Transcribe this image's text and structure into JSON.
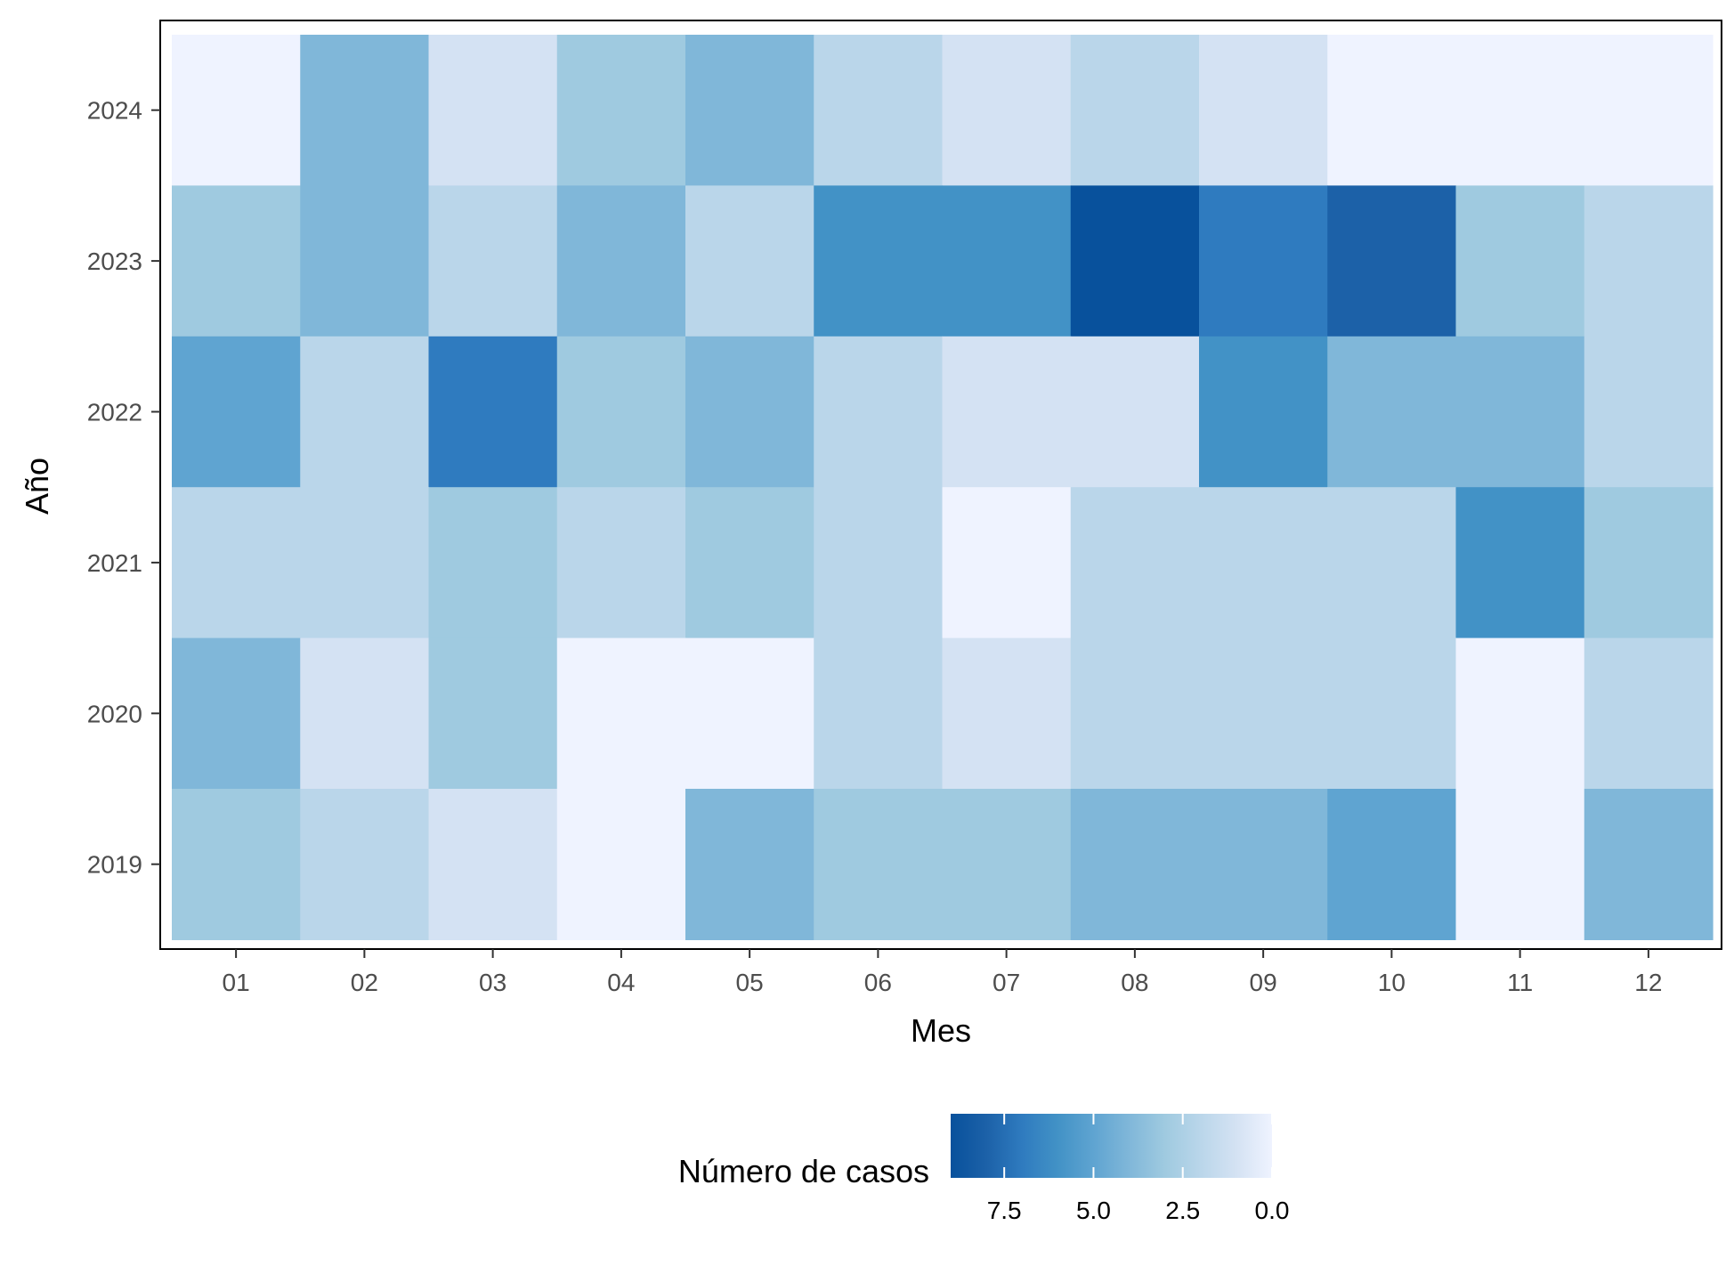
{
  "chart_data": {
    "type": "heatmap",
    "title": "",
    "xlabel": "Mes",
    "ylabel": "Año",
    "x_categories": [
      "01",
      "02",
      "03",
      "04",
      "05",
      "06",
      "07",
      "08",
      "09",
      "10",
      "11",
      "12"
    ],
    "y_categories": [
      "2019",
      "2020",
      "2021",
      "2022",
      "2023",
      "2024"
    ],
    "rows": [
      {
        "year": "2024",
        "values": [
          0,
          4,
          1,
          3,
          4,
          2,
          1,
          2,
          1,
          0,
          0,
          0
        ]
      },
      {
        "year": "2023",
        "values": [
          3,
          4,
          2,
          4,
          2,
          6,
          6,
          9,
          7,
          8,
          3,
          2
        ]
      },
      {
        "year": "2022",
        "values": [
          5,
          2,
          7,
          3,
          4,
          2,
          1,
          1,
          6,
          4,
          4,
          2
        ]
      },
      {
        "year": "2021",
        "values": [
          2,
          2,
          3,
          2,
          3,
          2,
          0,
          2,
          2,
          2,
          6,
          3
        ]
      },
      {
        "year": "2020",
        "values": [
          4,
          1,
          3,
          0,
          0,
          2,
          1,
          2,
          2,
          2,
          0,
          2
        ]
      },
      {
        "year": "2019",
        "values": [
          3,
          2,
          1,
          0,
          4,
          3,
          3,
          4,
          4,
          5,
          0,
          4
        ]
      }
    ],
    "color_scale": {
      "min": 0,
      "max": 9,
      "low_color": "#eff3ff",
      "high_color": "#08519c",
      "palette": [
        "#eff3ff",
        "#d4e2f3",
        "#bad6ea",
        "#9fcae0",
        "#80b7d9",
        "#5fa4d1",
        "#4292c6",
        "#2f7bbf",
        "#1c61a8",
        "#08519c"
      ]
    },
    "legend": {
      "title": "Número de casos",
      "position": "bottom",
      "ticks": [
        7.5,
        5.0,
        2.5,
        0.0
      ],
      "tick_labels": [
        "7.5",
        "5.0",
        "2.5",
        "0.0"
      ]
    },
    "grid": false,
    "panel_border": true
  }
}
